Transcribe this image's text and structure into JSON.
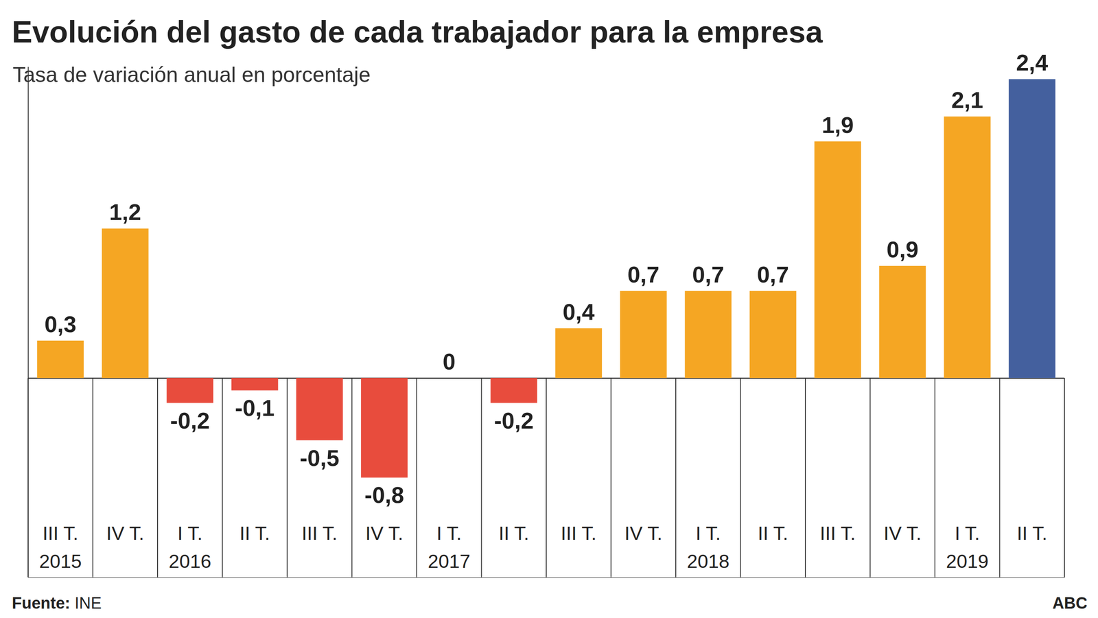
{
  "chart_data": {
    "type": "bar",
    "title": "Evolución del gasto de cada trabajador para la empresa",
    "subtitle": "Tasa de variación anual en porcentaje",
    "source": "Fuente: INE",
    "credit": "ABC",
    "categories": [
      "III T.\n2015",
      "IV T.",
      "I T.\n2016",
      "II T.",
      "III T.",
      "IV T.",
      "I T.\n2017",
      "II T.",
      "III T.",
      "IV T.",
      "I T.\n2018",
      "II T.",
      "III T.",
      "IV T.",
      "I T.\n2019",
      "II T."
    ],
    "values": [
      0.3,
      1.2,
      -0.2,
      -0.1,
      -0.5,
      -0.8,
      0,
      -0.2,
      0.4,
      0.7,
      0.7,
      0.7,
      1.9,
      0.9,
      2.1,
      2.4
    ],
    "value_labels": [
      "0,3",
      "1,2",
      "-0,2",
      "-0,1",
      "-0,5",
      "-0,8",
      "0",
      "-0,2",
      "0,4",
      "0,7",
      "0,7",
      "0,7",
      "1,9",
      "0,9",
      "2,1",
      "2,4"
    ],
    "colors": [
      "#f5a623",
      "#f5a623",
      "#e84c3d",
      "#e84c3d",
      "#e84c3d",
      "#e84c3d",
      "#f5a623",
      "#e84c3d",
      "#f5a623",
      "#f5a623",
      "#f5a623",
      "#f5a623",
      "#f5a623",
      "#f5a623",
      "#f5a623",
      "#44609e"
    ],
    "ylim": [
      -1.6,
      2.5
    ],
    "yticks": [
      0
    ],
    "data_labels": true,
    "tick_labels": "x",
    "grid": false
  }
}
